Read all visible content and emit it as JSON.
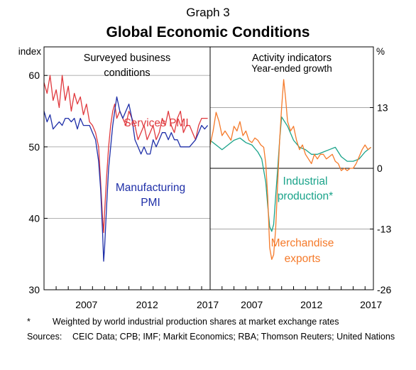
{
  "graph_label": "Graph 3",
  "title": "Global Economic Conditions",
  "footnote": {
    "marker": "*",
    "text": "Weighted by world industrial production shares at market exchange rates"
  },
  "sources": {
    "label": "Sources:",
    "text": "CEIC Data; CPB; IMF; Markit Economics; RBA; Thomson Reuters; United Nations"
  },
  "colors": {
    "services": "#e0393e",
    "manufacturing": "#1f2fa8",
    "industrial": "#1aa38a",
    "exports": "#f57a2a"
  },
  "chart_data": [
    {
      "type": "line",
      "panel": "left",
      "title_lines": [
        "Surveyed business",
        "conditions"
      ],
      "ylabel": "index",
      "ylim": [
        30,
        64
      ],
      "yticks": [
        30,
        40,
        50,
        60
      ],
      "xlim": [
        2004.0,
        2017.7
      ],
      "xticks": [
        2007,
        2012,
        2017
      ],
      "series": [
        {
          "name": "Services PMI",
          "label_lines": [
            "Services PMI"
          ],
          "color_key": "services",
          "x": [
            2004.0,
            2004.25,
            2004.5,
            2004.75,
            2005.0,
            2005.25,
            2005.5,
            2005.75,
            2006.0,
            2006.25,
            2006.5,
            2006.75,
            2007.0,
            2007.25,
            2007.5,
            2007.75,
            2008.0,
            2008.25,
            2008.5,
            2008.67,
            2008.83,
            2008.92,
            2009.0,
            2009.17,
            2009.33,
            2009.5,
            2009.67,
            2009.83,
            2010.0,
            2010.25,
            2010.5,
            2010.75,
            2011.0,
            2011.25,
            2011.5,
            2011.75,
            2012.0,
            2012.25,
            2012.5,
            2012.75,
            2013.0,
            2013.25,
            2013.5,
            2013.75,
            2014.0,
            2014.25,
            2014.5,
            2014.75,
            2015.0,
            2015.25,
            2015.5,
            2015.75,
            2016.0,
            2016.25,
            2016.5,
            2016.75,
            2017.0,
            2017.25,
            2017.5
          ],
          "values": [
            59,
            57.5,
            60,
            56.5,
            58,
            55.5,
            60,
            56.5,
            58.5,
            55,
            57.5,
            56,
            57,
            54.5,
            56,
            53.5,
            53,
            52,
            50,
            45,
            40,
            38,
            41,
            46,
            50,
            53,
            55,
            56,
            54,
            55,
            54,
            53,
            55,
            54,
            53,
            51,
            52,
            53,
            51,
            52,
            53,
            51,
            52,
            54,
            53,
            55,
            53,
            52,
            54,
            55,
            52,
            53,
            53,
            52,
            51,
            53,
            54,
            54,
            54
          ]
        },
        {
          "name": "Manufacturing PMI",
          "label_lines": [
            "Manufacturing",
            "PMI"
          ],
          "color_key": "manufacturing",
          "x": [
            2004.0,
            2004.25,
            2004.5,
            2004.75,
            2005.0,
            2005.25,
            2005.5,
            2005.75,
            2006.0,
            2006.25,
            2006.5,
            2006.75,
            2007.0,
            2007.25,
            2007.5,
            2007.75,
            2008.0,
            2008.25,
            2008.5,
            2008.67,
            2008.83,
            2008.92,
            2009.0,
            2009.17,
            2009.33,
            2009.5,
            2009.67,
            2009.83,
            2010.0,
            2010.25,
            2010.5,
            2010.75,
            2011.0,
            2011.25,
            2011.5,
            2011.75,
            2012.0,
            2012.25,
            2012.5,
            2012.75,
            2013.0,
            2013.25,
            2013.5,
            2013.75,
            2014.0,
            2014.25,
            2014.5,
            2014.75,
            2015.0,
            2015.25,
            2015.5,
            2015.75,
            2016.0,
            2016.25,
            2016.5,
            2016.75,
            2017.0,
            2017.25,
            2017.5
          ],
          "values": [
            55,
            53.5,
            54.5,
            52.5,
            53,
            53.5,
            53,
            54,
            54,
            53.5,
            54,
            52.5,
            54,
            53,
            53,
            53,
            52,
            51,
            48,
            44,
            38,
            34,
            36,
            42,
            47,
            50,
            53,
            55,
            57,
            55,
            54,
            55,
            56,
            54,
            51,
            50,
            49,
            50,
            49,
            49,
            51,
            50,
            51,
            52,
            52,
            51,
            52,
            51,
            51,
            50,
            50,
            50,
            50,
            50.5,
            51,
            52,
            53,
            52.5,
            53
          ]
        }
      ]
    },
    {
      "type": "line",
      "panel": "right",
      "title_lines": [
        "Activity indicators"
      ],
      "subtitle": "Year-ended growth",
      "ylabel": "%",
      "ylim": [
        -26,
        26
      ],
      "yticks": [
        -26,
        -13,
        0,
        13
      ],
      "xlim": [
        2004.0,
        2017.7
      ],
      "xticks": [
        2007,
        2012,
        2017
      ],
      "series": [
        {
          "name": "Industrial production*",
          "label_lines": [
            "Industrial",
            "production*"
          ],
          "color_key": "industrial",
          "x": [
            2004.0,
            2004.5,
            2005.0,
            2005.5,
            2006.0,
            2006.5,
            2007.0,
            2007.5,
            2008.0,
            2008.33,
            2008.67,
            2008.83,
            2009.0,
            2009.17,
            2009.33,
            2009.5,
            2009.67,
            2009.83,
            2010.0,
            2010.25,
            2010.5,
            2011.0,
            2011.5,
            2012.0,
            2012.5,
            2013.0,
            2013.5,
            2014.0,
            2014.5,
            2015.0,
            2015.5,
            2016.0,
            2016.5,
            2017.0,
            2017.5
          ],
          "values": [
            6,
            5,
            4,
            5,
            6,
            6.5,
            5.5,
            5,
            3.5,
            2,
            -3,
            -8,
            -12.5,
            -13.5,
            -12,
            -6,
            0,
            6,
            11,
            10,
            9,
            6,
            4.5,
            4,
            3,
            3,
            3.5,
            4,
            4.5,
            2.5,
            1.5,
            1.5,
            2,
            3.5,
            4.5
          ]
        },
        {
          "name": "Merchandise exports",
          "label_lines": [
            "Merchandise",
            "exports"
          ],
          "color_key": "exports",
          "x": [
            2004.0,
            2004.25,
            2004.5,
            2004.75,
            2005.0,
            2005.25,
            2005.5,
            2005.75,
            2006.0,
            2006.25,
            2006.5,
            2006.75,
            2007.0,
            2007.25,
            2007.5,
            2007.75,
            2008.0,
            2008.25,
            2008.5,
            2008.67,
            2008.83,
            2009.0,
            2009.17,
            2009.33,
            2009.5,
            2009.67,
            2009.83,
            2010.0,
            2010.17,
            2010.33,
            2010.5,
            2010.75,
            2011.0,
            2011.25,
            2011.5,
            2011.75,
            2012.0,
            2012.25,
            2012.5,
            2012.75,
            2013.0,
            2013.25,
            2013.5,
            2013.75,
            2014.0,
            2014.25,
            2014.5,
            2014.75,
            2015.0,
            2015.25,
            2015.5,
            2015.75,
            2016.0,
            2016.25,
            2016.5,
            2016.75,
            2017.0,
            2017.25,
            2017.5
          ],
          "values": [
            5,
            8,
            12,
            10,
            7,
            8,
            7,
            6,
            9,
            8,
            10,
            7,
            8,
            6,
            5.5,
            6.5,
            6,
            5,
            4.5,
            1,
            -6,
            -17,
            -19.5,
            -18.5,
            -13,
            -3,
            6,
            13,
            19,
            15,
            10,
            8,
            9,
            6,
            4,
            5,
            3,
            2,
            1,
            3,
            2,
            3,
            3,
            2,
            2.5,
            3,
            1.5,
            1,
            -0.5,
            0,
            -0.5,
            0,
            0,
            1,
            2.5,
            4,
            5,
            4,
            4.5
          ]
        }
      ]
    }
  ]
}
